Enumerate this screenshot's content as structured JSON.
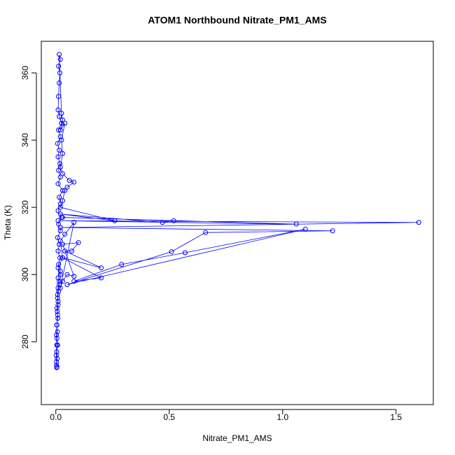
{
  "chart_data": {
    "type": "line",
    "title": "ATOM1 Northbound Nitrate_PM1_AMS",
    "xlabel": "Nitrate_PM1_AMS",
    "ylabel": "Theta (K)",
    "color": "#0000ff",
    "markers": true,
    "xlim": [
      -0.064,
      1.664
    ],
    "ylim": [
      261.3,
      369.4
    ],
    "xticks": [
      {
        "value": 0,
        "label": "0.0"
      },
      0.5,
      {
        "value": 1,
        "label": "1.0"
      },
      1.5
    ],
    "yticks": [
      280,
      300,
      320,
      340,
      360
    ],
    "x": [
      0.005,
      0.003,
      0.006,
      0.004,
      0.008,
      0.005,
      0.007,
      0.004,
      0.009,
      0.006,
      0.01,
      0.008,
      0.012,
      0.015,
      0.01,
      0.02,
      0.012,
      0.018,
      0.01,
      0.015,
      0.008,
      0.02,
      0.012,
      0.025,
      0.01,
      0.02,
      0.015,
      0.03,
      0.01,
      0.02,
      0.012,
      0.018,
      0.01,
      0.015,
      0.008,
      0.02,
      0.012,
      0.025,
      0.015,
      0.01,
      0.012,
      0.015,
      0.018,
      0.012,
      0.02,
      0.015,
      0.025,
      0.03,
      0.02,
      0.04,
      0.025,
      0.03,
      0.02,
      0.03,
      0.06,
      0.08,
      0.05,
      0.04,
      0.03,
      0.02,
      0.26,
      0.02,
      0.47,
      0.52,
      0.03,
      1.06,
      0.01,
      1.6,
      0.02,
      1.22,
      0.66,
      0.51,
      0.05,
      1.1,
      0.57,
      0.29,
      0.08,
      0.2,
      0.03,
      0.2,
      0.04,
      0.07,
      0.1,
      0.03,
      0.08,
      0.05,
      0.03,
      0.02,
      0.08,
      0.04,
      0.02,
      0.03,
      0.01,
      0.02,
      0.015,
      0.01,
      0.008,
      0.01,
      0.005,
      0.008,
      0.005,
      0.003,
      0.004,
      0.002,
      0.003,
      0.004
    ],
    "values": [
      272.5,
      273,
      275,
      277,
      279,
      281,
      283,
      285,
      287,
      289,
      291,
      293,
      295,
      297,
      299,
      301,
      303,
      305,
      307,
      309,
      311,
      313,
      315,
      317,
      319,
      321,
      323,
      325,
      327,
      329,
      331,
      333,
      335,
      337,
      339,
      341,
      343,
      345,
      347,
      349,
      353,
      357,
      360,
      362,
      364,
      365.5,
      348,
      346,
      343,
      345,
      340,
      336,
      332,
      330,
      328,
      327.5,
      326,
      325,
      322,
      320,
      316,
      318,
      315.5,
      316,
      317,
      315,
      316,
      315.5,
      314,
      313,
      312.5,
      306.8,
      297,
      313.5,
      306.5,
      303,
      298,
      299,
      305,
      302,
      307,
      307,
      309.5,
      309,
      299.5,
      300,
      298,
      296,
      315.5,
      312,
      310,
      305,
      302,
      300,
      298,
      296,
      294,
      292,
      290,
      288,
      285,
      282,
      279,
      276,
      274,
      272.3
    ]
  }
}
